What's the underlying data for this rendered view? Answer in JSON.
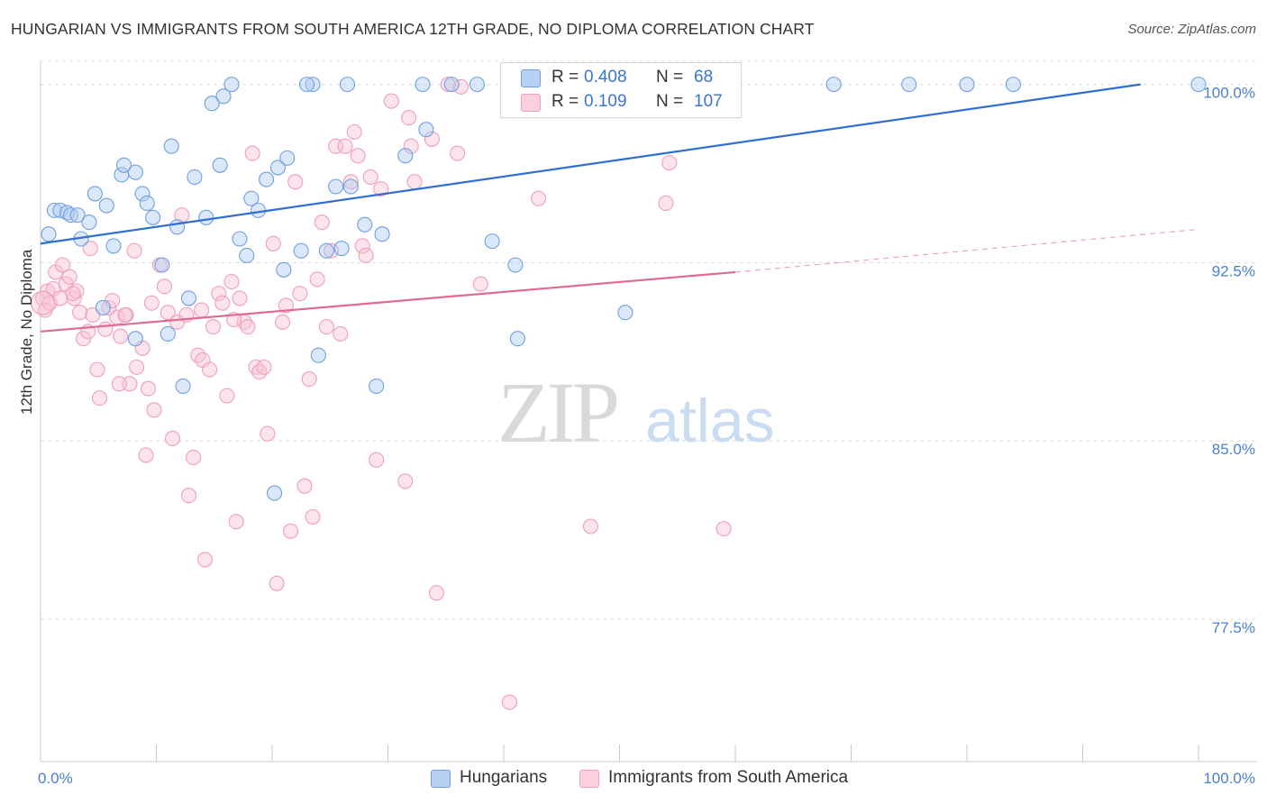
{
  "title": "HUNGARIAN VS IMMIGRANTS FROM SOUTH AMERICA 12TH GRADE, NO DIPLOMA CORRELATION CHART",
  "source": "Source: ZipAtlas.com",
  "watermark": {
    "zip": "ZIP",
    "atlas": "atlas"
  },
  "legend_top": {
    "rows": [
      {
        "r_label": "R =",
        "r_value": "0.408",
        "n_label": "N =",
        "n_value": "68"
      },
      {
        "r_label": "R =",
        "r_value": "0.109",
        "n_label": "N =",
        "n_value": "107"
      }
    ]
  },
  "chart_data": {
    "type": "scatter",
    "title": "HUNGARIAN VS IMMIGRANTS FROM SOUTH AMERICA 12TH GRADE, NO DIPLOMA CORRELATION CHART",
    "xlabel": "",
    "ylabel": "12th Grade, No Diploma",
    "xlim": [
      0,
      100
    ],
    "ylim": [
      71.5,
      101.2
    ],
    "x_tick_labels": [
      "0.0%",
      "100.0%"
    ],
    "y_ticks": [
      77.5,
      85.0,
      92.5,
      100.0
    ],
    "y_tick_labels": [
      "77.5%",
      "85.0%",
      "92.5%",
      "100.0%"
    ],
    "grid": "horizontal dashed",
    "legend_position": "bottom-center",
    "colors": {
      "Hungarians": "#6f9fe0",
      "Immigrants from South America": "#f0a0b8",
      "blue_line": "#2f6fd0",
      "pink_line": "#e06a94",
      "axis_text": "#4a7fd0"
    },
    "series": [
      {
        "name": "Hungarians",
        "r": 0.408,
        "n": 68,
        "trend": {
          "x0": 0,
          "y0": 93.3,
          "x1": 95,
          "y1": 100.0
        },
        "points": [
          [
            0.7,
            93.7
          ],
          [
            1.2,
            94.7
          ],
          [
            1.7,
            94.7
          ],
          [
            2.3,
            94.6
          ],
          [
            2.6,
            94.5
          ],
          [
            3.2,
            94.5
          ],
          [
            3.5,
            93.5
          ],
          [
            4.2,
            94.2
          ],
          [
            4.7,
            95.4
          ],
          [
            5.7,
            94.9
          ],
          [
            6.3,
            93.2
          ],
          [
            7.0,
            96.2
          ],
          [
            7.2,
            96.6
          ],
          [
            8.2,
            96.3
          ],
          [
            8.8,
            95.4
          ],
          [
            9.2,
            95.0
          ],
          [
            9.7,
            94.4
          ],
          [
            10.5,
            92.4
          ],
          [
            11.0,
            89.5
          ],
          [
            11.3,
            97.4
          ],
          [
            11.8,
            94.0
          ],
          [
            12.3,
            87.3
          ],
          [
            13.3,
            96.1
          ],
          [
            14.3,
            94.4
          ],
          [
            14.8,
            99.2
          ],
          [
            15.5,
            96.6
          ],
          [
            15.8,
            99.5
          ],
          [
            16.5,
            100.0
          ],
          [
            17.2,
            93.5
          ],
          [
            17.8,
            92.8
          ],
          [
            18.2,
            95.2
          ],
          [
            18.8,
            94.7
          ],
          [
            19.5,
            96.0
          ],
          [
            20.2,
            82.8
          ],
          [
            20.5,
            96.5
          ],
          [
            21.0,
            92.2
          ],
          [
            21.3,
            96.9
          ],
          [
            22.5,
            93.0
          ],
          [
            23.5,
            100.0
          ],
          [
            24.0,
            88.6
          ],
          [
            24.7,
            93.0
          ],
          [
            25.5,
            95.7
          ],
          [
            26.0,
            93.1
          ],
          [
            26.5,
            100.0
          ],
          [
            26.8,
            95.7
          ],
          [
            28.0,
            94.1
          ],
          [
            29.0,
            87.3
          ],
          [
            29.5,
            93.7
          ],
          [
            31.5,
            97.0
          ],
          [
            33.0,
            100.0
          ],
          [
            33.3,
            98.1
          ],
          [
            35.5,
            100.0
          ],
          [
            37.7,
            100.0
          ],
          [
            39.0,
            93.4
          ],
          [
            41.0,
            92.4
          ],
          [
            41.2,
            89.3
          ],
          [
            50.5,
            90.4
          ],
          [
            51.3,
            100.0
          ],
          [
            53.8,
            100.0
          ],
          [
            68.5,
            100.0
          ],
          [
            75.0,
            100.0
          ],
          [
            80.0,
            100.0
          ],
          [
            84.0,
            100.0
          ],
          [
            100.0,
            100.0
          ],
          [
            8.2,
            89.3
          ],
          [
            5.4,
            90.6
          ],
          [
            12.8,
            91.0
          ],
          [
            23.0,
            100.0
          ]
        ]
      },
      {
        "name": "Immigrants from South America",
        "r": 0.109,
        "n": 107,
        "trend": {
          "x0": 0,
          "y0": 89.6,
          "x1": 60,
          "y1": 92.1
        },
        "trend_dashed": {
          "x0": 60,
          "y0": 92.1,
          "x1": 100,
          "y1": 93.9
        },
        "points": [
          [
            0.2,
            91.0
          ],
          [
            0.4,
            90.5
          ],
          [
            0.6,
            91.3
          ],
          [
            0.8,
            90.8
          ],
          [
            1.1,
            91.4
          ],
          [
            1.3,
            92.1
          ],
          [
            1.7,
            91.0
          ],
          [
            1.9,
            92.4
          ],
          [
            2.2,
            91.6
          ],
          [
            2.5,
            91.9
          ],
          [
            2.9,
            91.0
          ],
          [
            3.1,
            91.3
          ],
          [
            3.4,
            90.4
          ],
          [
            3.7,
            89.3
          ],
          [
            4.1,
            89.6
          ],
          [
            4.5,
            90.3
          ],
          [
            4.9,
            88.0
          ],
          [
            5.1,
            86.8
          ],
          [
            5.6,
            89.7
          ],
          [
            5.9,
            90.6
          ],
          [
            6.2,
            90.9
          ],
          [
            6.6,
            90.2
          ],
          [
            6.9,
            89.4
          ],
          [
            7.4,
            90.3
          ],
          [
            7.7,
            87.4
          ],
          [
            8.1,
            93.0
          ],
          [
            8.3,
            88.1
          ],
          [
            8.8,
            88.9
          ],
          [
            9.1,
            84.4
          ],
          [
            9.6,
            90.8
          ],
          [
            9.8,
            86.3
          ],
          [
            10.3,
            92.4
          ],
          [
            10.7,
            91.5
          ],
          [
            11.0,
            90.4
          ],
          [
            11.4,
            85.1
          ],
          [
            11.8,
            90.0
          ],
          [
            12.2,
            94.5
          ],
          [
            12.6,
            90.3
          ],
          [
            12.8,
            82.7
          ],
          [
            13.2,
            84.3
          ],
          [
            13.6,
            88.6
          ],
          [
            14.0,
            88.4
          ],
          [
            14.2,
            80.0
          ],
          [
            14.6,
            88.0
          ],
          [
            14.9,
            89.8
          ],
          [
            15.4,
            91.2
          ],
          [
            15.7,
            90.8
          ],
          [
            16.1,
            86.9
          ],
          [
            16.5,
            91.7
          ],
          [
            16.9,
            81.6
          ],
          [
            17.2,
            91.0
          ],
          [
            17.6,
            90.0
          ],
          [
            17.9,
            89.8
          ],
          [
            18.3,
            97.1
          ],
          [
            18.6,
            88.1
          ],
          [
            18.9,
            87.9
          ],
          [
            19.3,
            88.1
          ],
          [
            19.6,
            85.3
          ],
          [
            20.1,
            93.3
          ],
          [
            20.4,
            79.0
          ],
          [
            20.9,
            90.0
          ],
          [
            21.2,
            90.7
          ],
          [
            21.6,
            81.2
          ],
          [
            22.0,
            95.9
          ],
          [
            22.4,
            91.2
          ],
          [
            22.8,
            83.1
          ],
          [
            23.2,
            87.6
          ],
          [
            23.5,
            81.8
          ],
          [
            23.9,
            91.8
          ],
          [
            24.3,
            94.2
          ],
          [
            24.7,
            89.8
          ],
          [
            25.1,
            93.0
          ],
          [
            25.5,
            97.4
          ],
          [
            25.9,
            89.5
          ],
          [
            26.3,
            97.4
          ],
          [
            26.8,
            95.9
          ],
          [
            27.1,
            98.0
          ],
          [
            27.4,
            97.0
          ],
          [
            27.8,
            93.2
          ],
          [
            28.1,
            92.8
          ],
          [
            28.5,
            96.1
          ],
          [
            29.0,
            84.2
          ],
          [
            30.3,
            99.3
          ],
          [
            31.5,
            83.3
          ],
          [
            31.8,
            98.6
          ],
          [
            32.0,
            97.4
          ],
          [
            32.3,
            95.9
          ],
          [
            33.8,
            97.7
          ],
          [
            34.2,
            78.6
          ],
          [
            35.2,
            100.0
          ],
          [
            36.0,
            97.1
          ],
          [
            38.0,
            91.6
          ],
          [
            40.5,
            74.0
          ],
          [
            43.0,
            95.2
          ],
          [
            47.5,
            81.4
          ],
          [
            54.3,
            96.7
          ],
          [
            54.0,
            95.0
          ],
          [
            59.0,
            81.3
          ],
          [
            2.8,
            91.2
          ],
          [
            6.8,
            87.4
          ],
          [
            9.3,
            87.2
          ],
          [
            13.9,
            90.5
          ],
          [
            7.3,
            90.3
          ],
          [
            16.7,
            90.1
          ],
          [
            4.3,
            93.1
          ],
          [
            29.4,
            95.6
          ],
          [
            36.3,
            99.9
          ]
        ]
      }
    ]
  },
  "bottom_legend": {
    "items": [
      "Hungarians",
      "Immigrants from South America"
    ]
  }
}
